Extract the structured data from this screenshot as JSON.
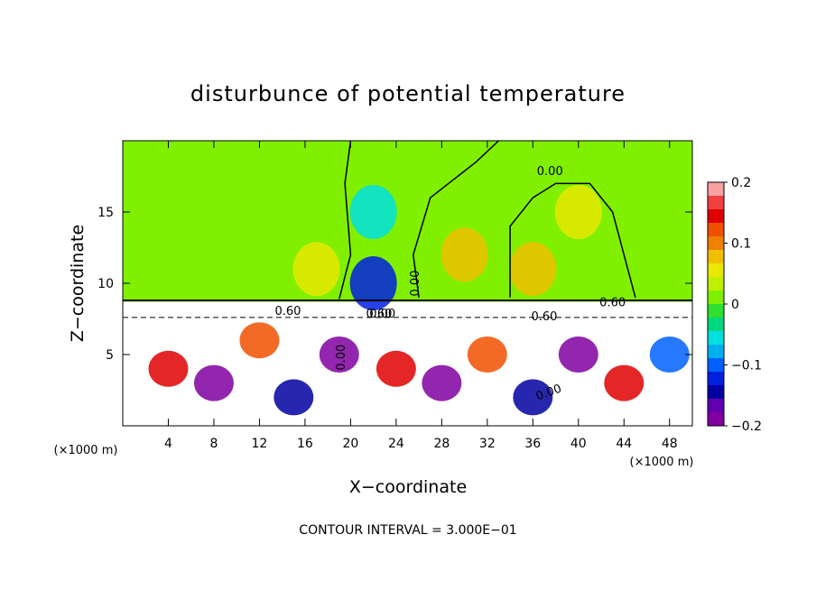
{
  "chart_data": {
    "type": "heatmap",
    "title": "disturbunce of potential temperature",
    "xlabel": "X−coordinate",
    "ylabel": "Z−coordinate",
    "x_unit": "(×1000 m)",
    "xlim": [
      0,
      50
    ],
    "ylim": [
      0,
      20
    ],
    "x_ticks": [
      4,
      8,
      12,
      16,
      20,
      24,
      28,
      32,
      36,
      40,
      44,
      48
    ],
    "y_ticks": [
      5,
      10,
      15
    ],
    "colorbar": {
      "min": -0.2,
      "max": 0.2,
      "ticks": [
        "0.2",
        "0.1",
        "0",
        "−0.1",
        "−0.2"
      ],
      "tick_values": [
        0.2,
        0.1,
        0,
        -0.1,
        -0.2
      ],
      "colors": [
        "#f9a0a0",
        "#f04040",
        "#e00000",
        "#f05000",
        "#f08000",
        "#f0c000",
        "#e8e800",
        "#c0f000",
        "#80f000",
        "#30e030",
        "#00d880",
        "#00e0e0",
        "#00b0f0",
        "#0060ff",
        "#0020e0",
        "#0000a0",
        "#6000b0",
        "#8000a0"
      ]
    },
    "contour_interval": "CONTOUR INTERVAL = 3.000E−01",
    "contour_labels": [
      "0.00",
      "0.60",
      "0.60",
      "0.00",
      "0.60",
      "0.00",
      "0.00",
      "0.00",
      "0.60"
    ],
    "background_value": 0.02,
    "features": [
      {
        "x": 10,
        "z": 18,
        "value": 0.02
      },
      {
        "x": 30,
        "z": 12,
        "value": 0.08
      },
      {
        "x": 40,
        "z": 15,
        "value": 0.06
      },
      {
        "x": 36,
        "z": 11,
        "value": 0.08
      },
      {
        "x": 22,
        "z": 15,
        "value": -0.05
      },
      {
        "x": 22,
        "z": 10,
        "value": -0.12
      },
      {
        "x": 17,
        "z": 11,
        "value": 0.05
      },
      {
        "x": 4,
        "z": 4,
        "value": 0.15
      },
      {
        "x": 8,
        "z": 3,
        "value": -0.18
      },
      {
        "x": 12,
        "z": 6,
        "value": 0.12
      },
      {
        "x": 15,
        "z": 2,
        "value": -0.15
      },
      {
        "x": 19,
        "z": 5,
        "value": -0.2
      },
      {
        "x": 24,
        "z": 4,
        "value": 0.14
      },
      {
        "x": 28,
        "z": 3,
        "value": -0.2
      },
      {
        "x": 32,
        "z": 5,
        "value": 0.12
      },
      {
        "x": 36,
        "z": 2,
        "value": -0.15
      },
      {
        "x": 40,
        "z": 5,
        "value": -0.18
      },
      {
        "x": 44,
        "z": 3,
        "value": 0.15
      },
      {
        "x": 48,
        "z": 5,
        "value": -0.1
      }
    ]
  }
}
